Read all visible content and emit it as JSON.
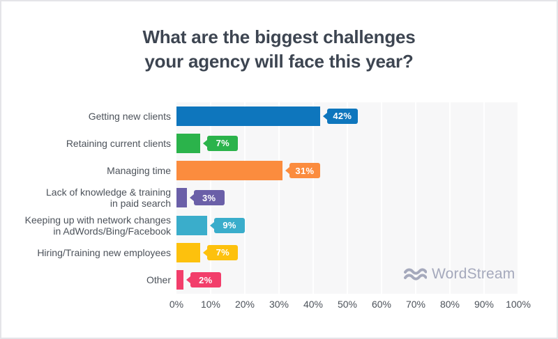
{
  "title": {
    "line1": "What are the biggest challenges",
    "line2": "your agency will face this year?"
  },
  "watermark": {
    "label": "WordStream",
    "icon": "waves-icon",
    "color": "#a5a9bc"
  },
  "palette": {
    "background": "#ffffff",
    "border": "#e4e4e8",
    "plot_background": "#f7f7f8",
    "gridline": "#ffffff",
    "title_text": "#3d4551",
    "label_text": "#4c525a",
    "axis_text": "#4c525a",
    "callout_text": "#ffffff"
  },
  "chart_data": {
    "type": "bar",
    "orientation": "horizontal",
    "title": "What are the biggest challenges your agency will face this year?",
    "categories": [
      "Getting new clients",
      "Retaining current clients",
      "Managing time",
      "Lack of knowledge & training\nin paid search",
      "Keeping up with network changes\nin AdWords/Bing/Facebook",
      "Hiring/Training new employees",
      "Other"
    ],
    "values": [
      42,
      7,
      31,
      3,
      9,
      7,
      2
    ],
    "value_labels": [
      "42%",
      "7%",
      "31%",
      "3%",
      "9%",
      "7%",
      "2%"
    ],
    "bar_colors": [
      "#0e76bd",
      "#2bb34b",
      "#fb8c3e",
      "#6a5fa8",
      "#3aadcb",
      "#fdc10d",
      "#f23e6b"
    ],
    "x_ticks": [
      "0%",
      "10%",
      "20%",
      "30%",
      "40%",
      "50%",
      "60%",
      "70%",
      "80%",
      "90%",
      "100%"
    ],
    "xlim": [
      0,
      100
    ],
    "xlabel": "",
    "ylabel": "",
    "grid": "vertical white gridlines on light gray plot background",
    "legend": "none",
    "value_label_style": "colored callout box with left-pointing arrow at end of each bar"
  }
}
